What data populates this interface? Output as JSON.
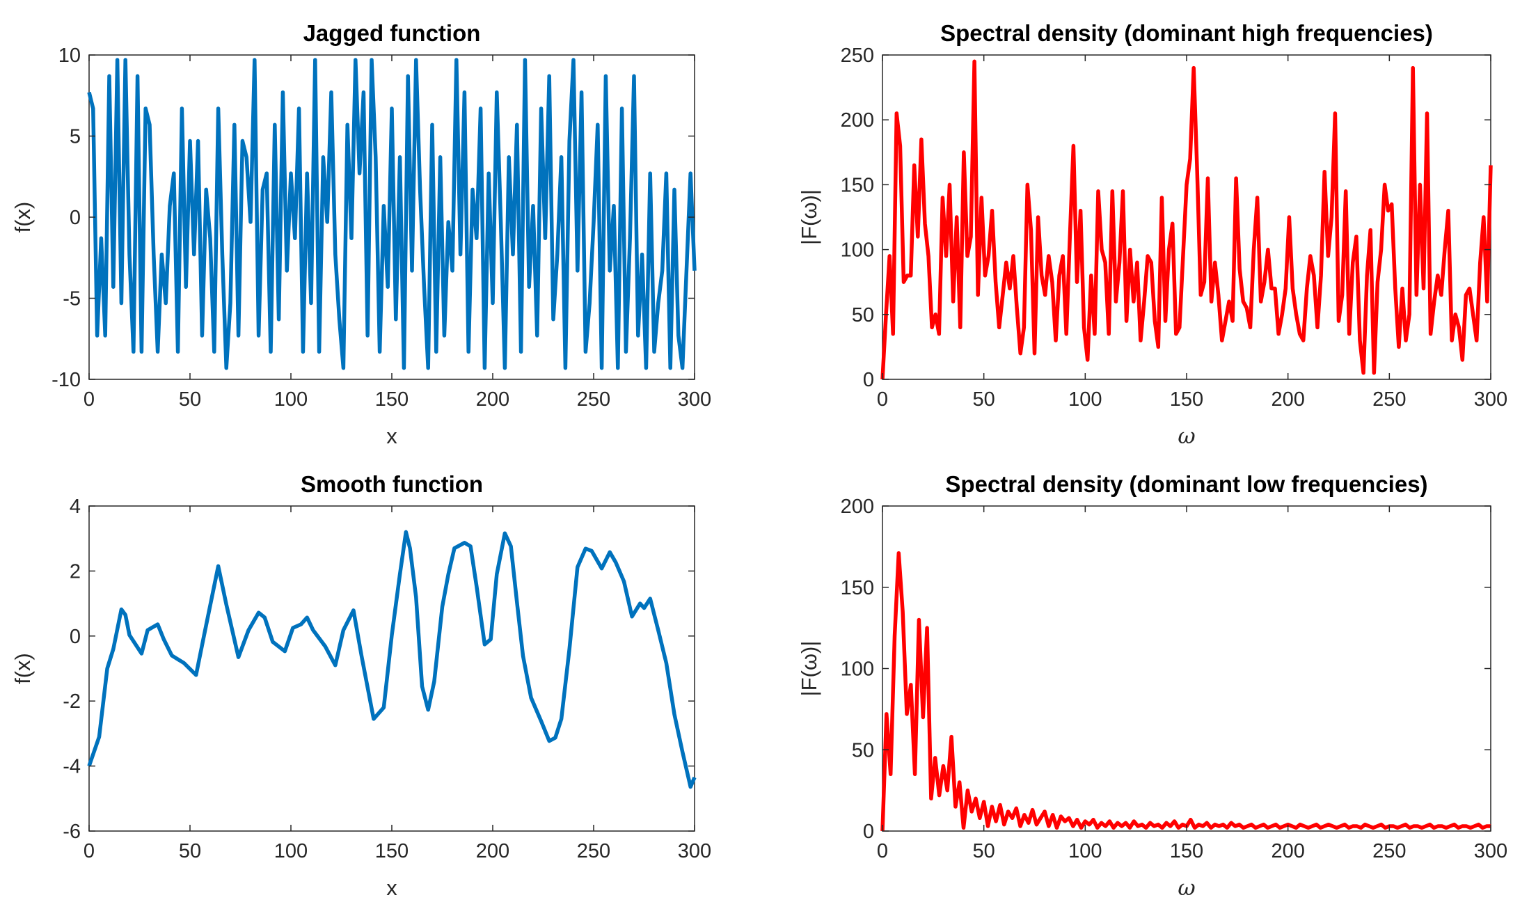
{
  "chart_data": [
    {
      "type": "line",
      "title": "Jagged function",
      "xlabel": "x",
      "ylabel": "f(x)",
      "xlim": [
        0,
        300
      ],
      "ylim": [
        -10,
        10
      ],
      "xticks": [
        "0",
        "50",
        "100",
        "150",
        "200",
        "250",
        "300"
      ],
      "yticks": [
        "-10",
        "-5",
        "0",
        "5",
        "10"
      ],
      "color": "#0072BD",
      "grid": false,
      "series": [
        {
          "x_range": [
            0,
            300
          ],
          "values": [
            7.7,
            6.7,
            -7.3,
            -1.3,
            -7.3,
            8.7,
            -4.3,
            9.7,
            -5.3,
            9.7,
            -2.3,
            -8.3,
            8.7,
            -8.3,
            6.7,
            5.7,
            -2.3,
            -8.3,
            -2.3,
            -5.3,
            0.7,
            2.7,
            -8.3,
            6.7,
            -4.3,
            4.7,
            -2.3,
            4.7,
            -7.3,
            1.7,
            -1.3,
            -8.3,
            6.7,
            -2.3,
            -9.3,
            -5.3,
            5.7,
            -7.3,
            4.7,
            3.7,
            -0.3,
            9.7,
            -7.3,
            1.7,
            2.7,
            -8.3,
            5.7,
            -6.3,
            7.7,
            -3.3,
            2.7,
            -1.3,
            6.7,
            -8.3,
            2.7,
            -5.3,
            9.7,
            -8.3,
            3.7,
            -0.3,
            7.7,
            -2.3,
            -6.3,
            -9.3,
            5.7,
            -1.3,
            9.7,
            2.7,
            7.7,
            -7.3,
            9.7,
            3.7,
            -8.3,
            0.7,
            -4.3,
            6.7,
            -6.3,
            3.7,
            -9.3,
            8.7,
            -3.3,
            9.7,
            1.7,
            -4.3,
            -9.3,
            5.7,
            -8.3,
            3.7,
            -7.3,
            -0.3,
            -3.3,
            9.7,
            -2.3,
            7.7,
            -8.3,
            1.7,
            -1.3,
            6.7,
            -9.3,
            2.7,
            -5.3,
            7.7,
            -0.3,
            -9.3,
            3.7,
            -2.3,
            5.7,
            -8.3,
            9.7,
            -4.3,
            0.7,
            -7.3,
            6.7,
            -1.3,
            8.7,
            -6.3,
            -2.3,
            3.7,
            -9.3,
            4.7,
            9.7,
            -3.3,
            7.7,
            -8.3,
            -5.3,
            -0.3,
            5.7,
            -9.3,
            8.7,
            -3.3,
            0.7,
            -9.3,
            6.7,
            -8.3,
            -1.3,
            8.7,
            -7.3,
            -2.3,
            -9.3,
            2.7,
            -8.3,
            -5.3,
            -3.3,
            2.7,
            -9.3,
            1.7,
            -7.3,
            -9.3,
            -3.3,
            2.7,
            -3.3
          ]
        }
      ]
    },
    {
      "type": "line",
      "title": "Spectral density (dominant high frequencies)",
      "xlabel": "ω",
      "ylabel": "|F(ω)|",
      "xlim": [
        0,
        300
      ],
      "ylim": [
        0,
        250
      ],
      "xticks": [
        "0",
        "50",
        "100",
        "150",
        "200",
        "250",
        "300"
      ],
      "yticks": [
        "0",
        "50",
        "100",
        "150",
        "200",
        "250"
      ],
      "color": "#FF0000",
      "grid": false,
      "series": [
        {
          "x_range": [
            0,
            300
          ],
          "values": [
            0,
            50,
            95,
            35,
            205,
            180,
            75,
            80,
            80,
            165,
            110,
            185,
            120,
            95,
            40,
            50,
            35,
            140,
            95,
            150,
            60,
            125,
            40,
            175,
            95,
            110,
            245,
            65,
            140,
            80,
            95,
            130,
            75,
            40,
            65,
            90,
            70,
            95,
            55,
            20,
            40,
            150,
            115,
            20,
            125,
            80,
            65,
            95,
            75,
            30,
            80,
            95,
            35,
            110,
            180,
            75,
            130,
            40,
            15,
            80,
            35,
            145,
            100,
            90,
            35,
            145,
            60,
            90,
            145,
            45,
            100,
            60,
            90,
            30,
            60,
            95,
            90,
            45,
            25,
            140,
            45,
            100,
            120,
            35,
            40,
            95,
            150,
            170,
            240,
            160,
            65,
            75,
            155,
            60,
            90,
            65,
            30,
            45,
            60,
            45,
            155,
            85,
            60,
            55,
            40,
            100,
            140,
            60,
            75,
            100,
            70,
            70,
            35,
            50,
            70,
            125,
            70,
            50,
            35,
            30,
            70,
            95,
            80,
            40,
            80,
            160,
            95,
            125,
            205,
            45,
            65,
            145,
            35,
            90,
            110,
            30,
            5,
            80,
            115,
            5,
            75,
            100,
            150,
            130,
            135,
            70,
            25,
            70,
            30,
            50,
            240,
            65,
            150,
            70,
            205,
            35,
            60,
            80,
            65,
            100,
            130,
            30,
            50,
            40,
            15,
            65,
            70,
            50,
            30,
            90,
            125,
            60,
            165
          ]
        }
      ]
    },
    {
      "type": "line",
      "title": "Smooth function",
      "xlabel": "x",
      "ylabel": "f(x)",
      "xlim": [
        0,
        300
      ],
      "ylim": [
        -6,
        4
      ],
      "xticks": [
        "0",
        "50",
        "100",
        "150",
        "200",
        "250",
        "300"
      ],
      "yticks": [
        "-6",
        "-4",
        "-2",
        "0",
        "2",
        "4"
      ],
      "color": "#0072BD",
      "grid": false,
      "series": [
        {
          "x": [
            0,
            5,
            9,
            12,
            16,
            18,
            20,
            26,
            29,
            34,
            37,
            41,
            47,
            53,
            57,
            64,
            68,
            74,
            79,
            84,
            87,
            91,
            97,
            101,
            105,
            108,
            111,
            117,
            122,
            126,
            131,
            135,
            141,
            146,
            150,
            154,
            157,
            159,
            162,
            165,
            168,
            171,
            175,
            178,
            181,
            186,
            189,
            192,
            196,
            199,
            202,
            206,
            209,
            212,
            215,
            219,
            224,
            228,
            231,
            234,
            238,
            242,
            246,
            249,
            254,
            258,
            261,
            265,
            269,
            273,
            275,
            278,
            282,
            286,
            290,
            294,
            298,
            300
          ],
          "y": [
            -4.0,
            -3.1,
            -1.0,
            -0.4,
            0.82,
            0.65,
            0.03,
            -0.54,
            0.18,
            0.36,
            -0.1,
            -0.6,
            -0.83,
            -1.2,
            0.03,
            2.15,
            0.97,
            -0.65,
            0.18,
            0.72,
            0.57,
            -0.18,
            -0.47,
            0.25,
            0.36,
            0.57,
            0.18,
            -0.32,
            -0.9,
            0.18,
            0.79,
            -0.61,
            -2.55,
            -2.2,
            0.03,
            1.9,
            3.2,
            2.7,
            1.2,
            -1.55,
            -2.27,
            -1.4,
            0.9,
            1.9,
            2.7,
            2.87,
            2.76,
            1.53,
            -0.26,
            -0.1,
            1.9,
            3.16,
            2.76,
            1.04,
            -0.61,
            -1.9,
            -2.62,
            -3.23,
            -3.13,
            -2.55,
            -0.4,
            2.12,
            2.69,
            2.62,
            2.08,
            2.58,
            2.26,
            1.68,
            0.6,
            1.0,
            0.86,
            1.15,
            0.18,
            -0.83,
            -2.41,
            -3.56,
            -4.64,
            -4.35
          ]
        }
      ]
    },
    {
      "type": "line",
      "title": "Spectral density (dominant low frequencies)",
      "xlabel": "ω",
      "ylabel": "|F(ω)|",
      "xlim": [
        0,
        300
      ],
      "ylim": [
        0,
        200
      ],
      "xticks": [
        "0",
        "50",
        "100",
        "150",
        "200",
        "250",
        "300"
      ],
      "yticks": [
        "0",
        "50",
        "100",
        "150",
        "200"
      ],
      "color": "#FF0000",
      "grid": false,
      "series": [
        {
          "x_range": [
            0,
            300
          ],
          "values": [
            0,
            72,
            35,
            120,
            171,
            135,
            72,
            90,
            35,
            130,
            70,
            125,
            20,
            45,
            22,
            40,
            25,
            58,
            15,
            30,
            2,
            25,
            12,
            20,
            8,
            18,
            3,
            15,
            6,
            16,
            4,
            12,
            8,
            14,
            3,
            10,
            5,
            13,
            4,
            8,
            12,
            3,
            10,
            2,
            9,
            6,
            8,
            3,
            7,
            2,
            6,
            4,
            7,
            2,
            5,
            3,
            6,
            2,
            5,
            3,
            5,
            2,
            6,
            3,
            4,
            2,
            5,
            3,
            4,
            2,
            5,
            3,
            6,
            2,
            4,
            3,
            7,
            2,
            4,
            3,
            5,
            2,
            4,
            3,
            4,
            2,
            5,
            3,
            4,
            2,
            3,
            4,
            2,
            3,
            4,
            2,
            3,
            4,
            2,
            3,
            4,
            3,
            2,
            4,
            3,
            2,
            3,
            4,
            2,
            3,
            4,
            3,
            2,
            3,
            4,
            2,
            3,
            3,
            2,
            4,
            3,
            2,
            3,
            4,
            2,
            3,
            3,
            2,
            3,
            4,
            2,
            3,
            3,
            2,
            3,
            4,
            2,
            3,
            3,
            2,
            3,
            4,
            2,
            3,
            3,
            2,
            3,
            4,
            2,
            3,
            3
          ]
        }
      ]
    }
  ]
}
